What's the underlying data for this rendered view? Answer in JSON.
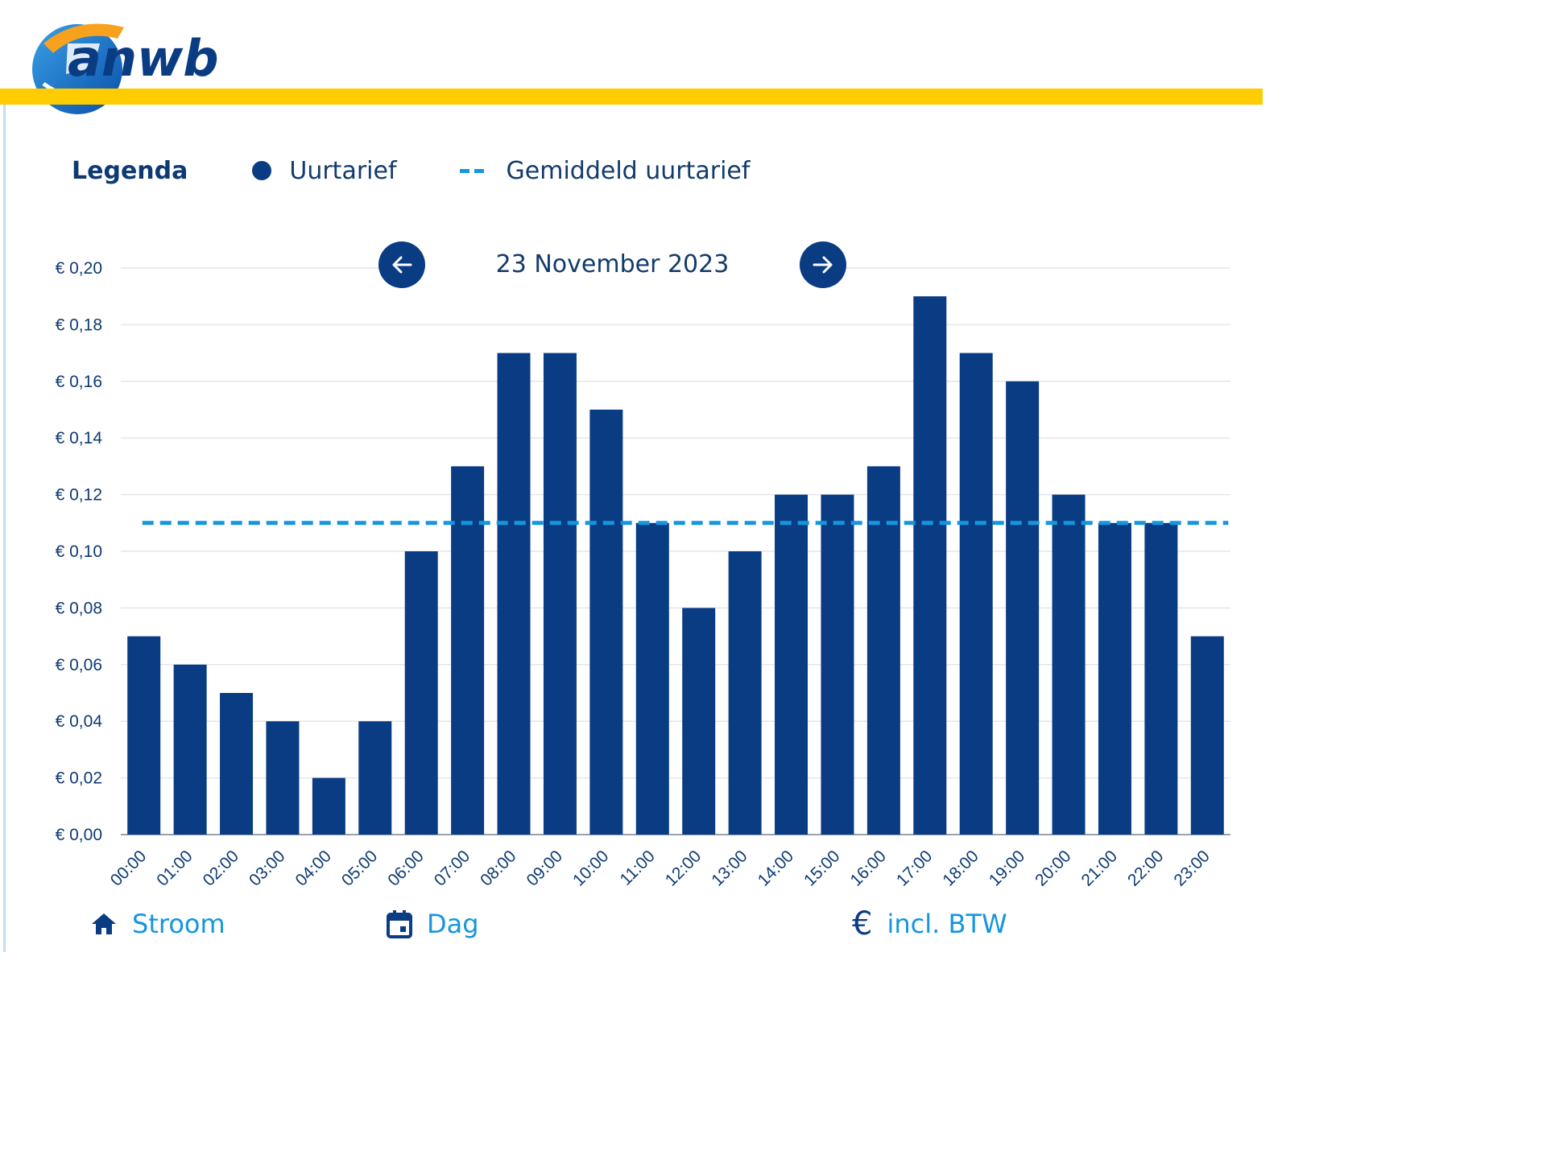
{
  "brand": {
    "logo_text": "anwb",
    "colors": {
      "navy": "#0a3c84",
      "yellow": "#ffcc00",
      "light_blue": "#1596dd"
    }
  },
  "legend": {
    "title": "Legenda",
    "items": [
      {
        "label": "Uurtarief",
        "symbol": "dot-icon",
        "color": "#0a3c84"
      },
      {
        "label": "Gemiddeld uurtarief",
        "symbol": "dashed-line-icon",
        "color": "#1596dd"
      }
    ]
  },
  "date_nav": {
    "date": "23 November 2023",
    "prev_icon": "arrow-left-icon",
    "next_icon": "arrow-right-icon"
  },
  "chart_data": {
    "type": "bar",
    "categories": [
      "00:00",
      "01:00",
      "02:00",
      "03:00",
      "04:00",
      "05:00",
      "06:00",
      "07:00",
      "08:00",
      "09:00",
      "10:00",
      "11:00",
      "12:00",
      "13:00",
      "14:00",
      "15:00",
      "16:00",
      "17:00",
      "18:00",
      "19:00",
      "20:00",
      "21:00",
      "22:00",
      "23:00"
    ],
    "series": [
      {
        "name": "Uurtarief",
        "color": "#0a3c84",
        "values": [
          0.07,
          0.06,
          0.05,
          0.04,
          0.02,
          0.04,
          0.1,
          0.13,
          0.17,
          0.17,
          0.15,
          0.11,
          0.08,
          0.1,
          0.12,
          0.12,
          0.13,
          0.19,
          0.17,
          0.16,
          0.12,
          0.11,
          0.11,
          0.07
        ]
      }
    ],
    "average": {
      "name": "Gemiddeld uurtarief",
      "value": 0.11,
      "color": "#1596dd"
    },
    "ylim": [
      0,
      0.2
    ],
    "yticks": [
      0.0,
      0.02,
      0.04,
      0.06,
      0.08,
      0.1,
      0.12,
      0.14,
      0.16,
      0.18,
      0.2
    ],
    "ytick_labels": [
      "€ 0,00",
      "€ 0,02",
      "€ 0,04",
      "€ 0,06",
      "€ 0,08",
      "€ 0,10",
      "€ 0,12",
      "€ 0,14",
      "€ 0,16",
      "€ 0,18",
      "€ 0,20"
    ],
    "grid": true
  },
  "footer": {
    "items": [
      {
        "label": "Stroom",
        "icon": "home-icon"
      },
      {
        "label": "Dag",
        "icon": "calendar-icon"
      },
      {
        "label": "incl. BTW",
        "icon": "euro-icon",
        "glyph": "€"
      }
    ]
  }
}
